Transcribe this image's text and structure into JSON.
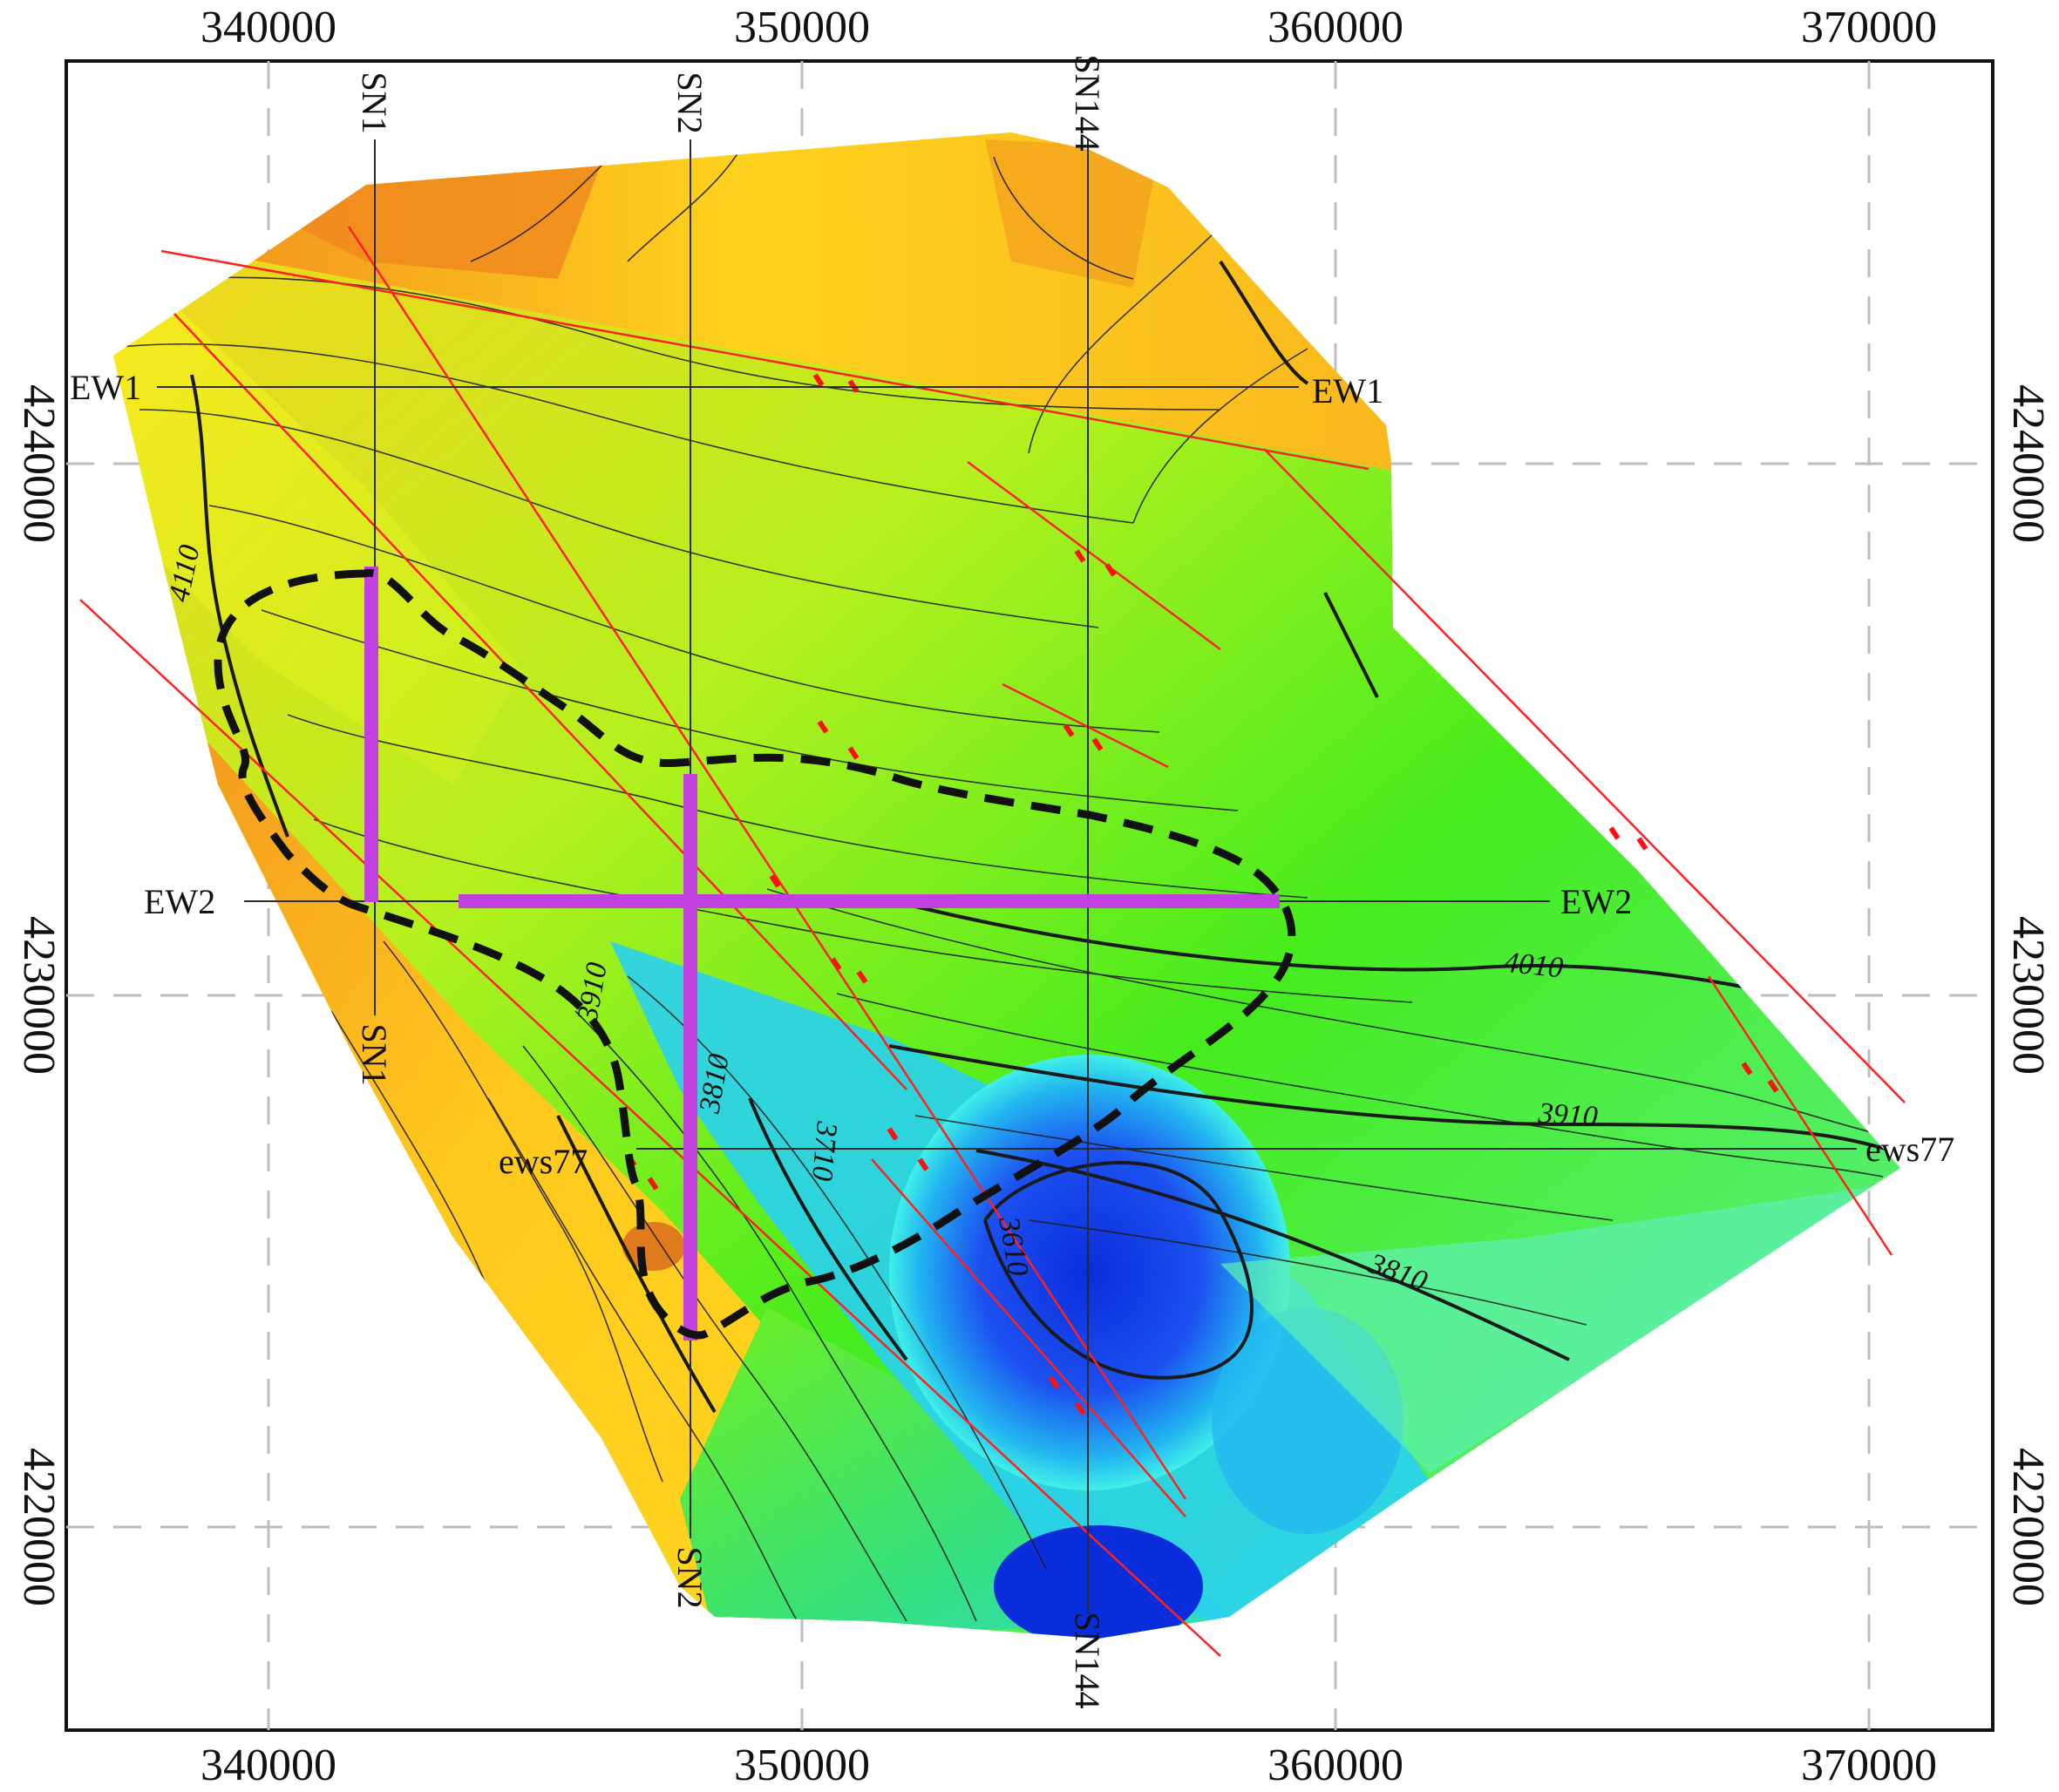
{
  "map": {
    "x_ticks": [
      "340000",
      "350000",
      "360000",
      "370000"
    ],
    "y_ticks": [
      "4240000",
      "4230000",
      "4220000"
    ],
    "survey_lines": {
      "sn1": "SN1",
      "sn2": "SN2",
      "sn144": "SN144",
      "ew1": "EW1",
      "ew2": "EW2",
      "ews77": "ews77"
    },
    "contour_labels": [
      "4110",
      "4010",
      "3910",
      "3910",
      "3810",
      "3810",
      "3710",
      "3610"
    ],
    "colors": {
      "high": "#f08c1e",
      "mid_high": "#ffd21e",
      "mid": "#3cf01e",
      "mid_low": "#28e6e6",
      "low": "#0a2ddc",
      "fault": "#ff2020",
      "highlight_profile": "#c040e0",
      "boundary": "#111111",
      "grid": "#bbbbbb"
    }
  }
}
